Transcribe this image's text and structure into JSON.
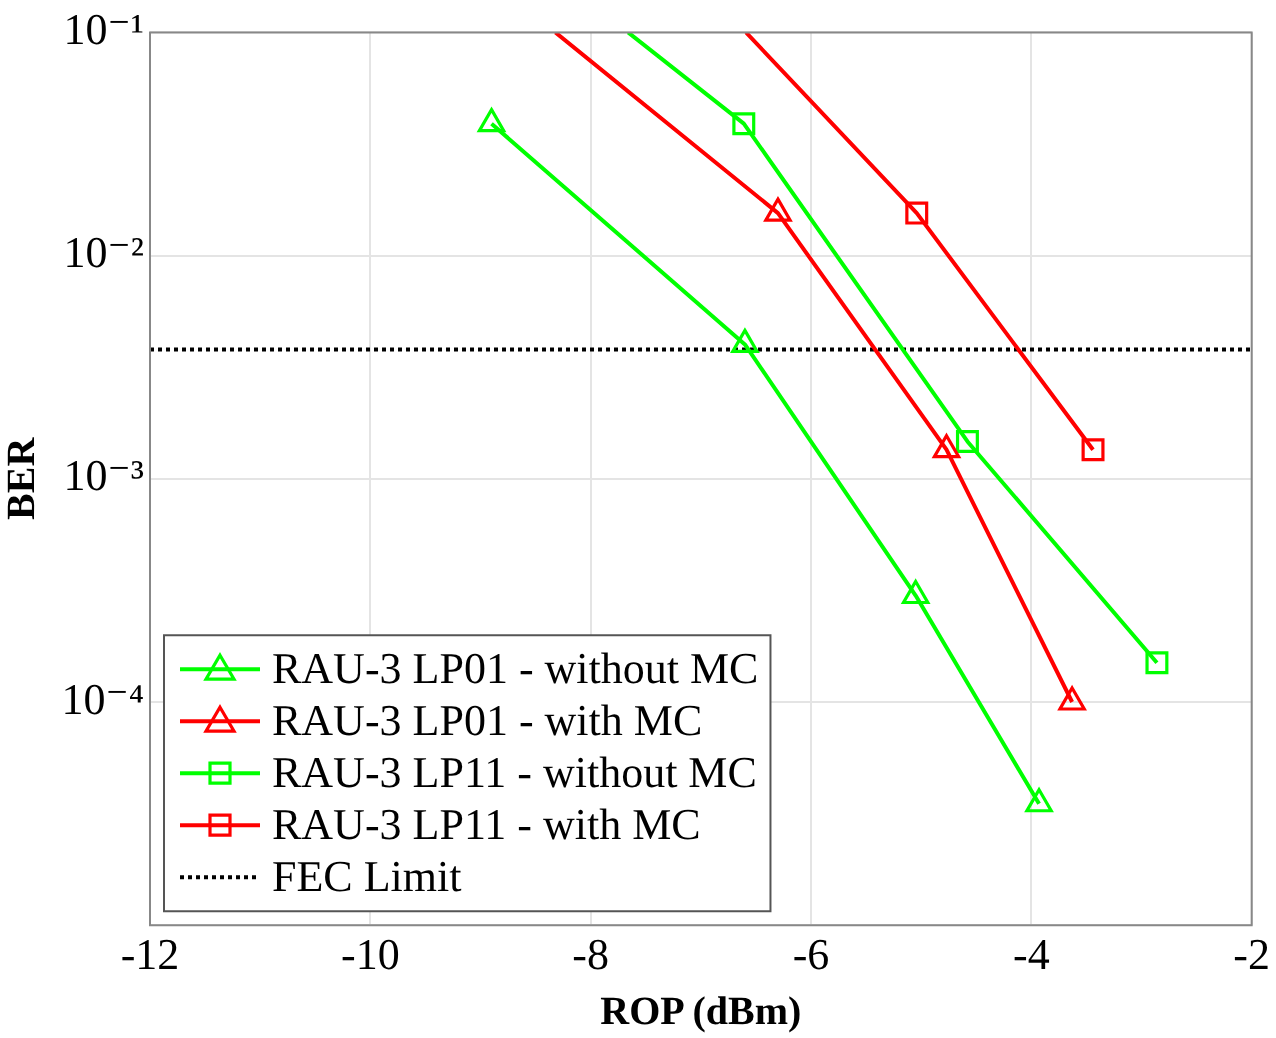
{
  "chart_data": {
    "type": "line",
    "xlabel": "ROP (dBm)",
    "ylabel": "BER",
    "log": "y",
    "grid": true,
    "legend": "bottom left",
    "xlim": [
      -12,
      -2
    ],
    "xticks": [
      -12,
      -10,
      -8,
      -6,
      -4,
      -2
    ],
    "ylim": [
      1e-05,
      0.1
    ],
    "yticks": [
      {
        "value": 1e-05,
        "label": null
      },
      {
        "value": 0.0001,
        "label": "10⁻⁴"
      },
      {
        "value": 0.001,
        "label": "10⁻³"
      },
      {
        "value": 0.01,
        "label": "10⁻²"
      },
      {
        "value": 0.1,
        "label": "10⁻¹"
      }
    ],
    "series": [
      {
        "name": "RAU-3 LP01 - without MC",
        "color": "#00ff00",
        "marker": "triangle",
        "x": [
          -8.9,
          -6.6,
          -5.05,
          -3.93
        ],
        "values": [
          0.039,
          0.004,
          0.0003,
          3.5e-05
        ]
      },
      {
        "name": "RAU-3 LP01 - with MC",
        "color": "#ff0000",
        "marker": "triangle",
        "x": [
          -8.32,
          -6.3,
          -4.77,
          -3.63
        ],
        "values": [
          0.1,
          0.0155,
          0.00135,
          0.0001
        ]
      },
      {
        "name": "RAU-3 LP11 - without MC",
        "color": "#00ff00",
        "marker": "square",
        "x": [
          -7.66,
          -6.61,
          -4.58,
          -2.86
        ],
        "values": [
          0.1,
          0.039,
          0.00147,
          0.00015
        ]
      },
      {
        "name": "RAU-3 LP11 - with MC",
        "color": "#ff0000",
        "marker": "square",
        "x": [
          -6.59,
          -5.04,
          -3.44
        ],
        "values": [
          0.1,
          0.0155,
          0.00135
        ]
      }
    ],
    "ref_lines": [
      {
        "axis": "y",
        "value": 0.0038,
        "label": "FEC Limit",
        "color": "#000000",
        "line_style": "dotted"
      }
    ]
  }
}
